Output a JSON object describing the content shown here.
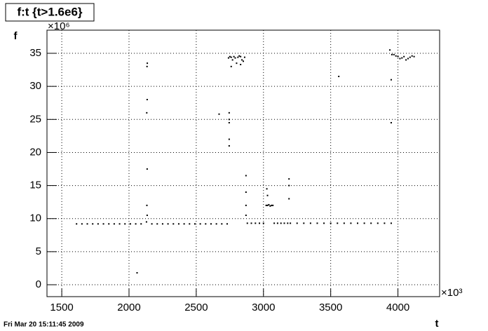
{
  "chart_data": {
    "type": "scatter",
    "title": "f:t {t>1.6e6}",
    "x_label": "t",
    "y_label": "f",
    "x_multiplier": "×10³",
    "y_multiplier": "×10⁶",
    "footer": "Fri Mar 20 15:11:45 2009",
    "color": "#000000",
    "grid": true,
    "xlim": [
      1390,
      4310
    ],
    "ylim": [
      -1.8,
      38.5
    ],
    "xticks": [
      1500,
      2000,
      2500,
      3000,
      3500,
      4000
    ],
    "yticks": [
      0,
      5,
      10,
      15,
      20,
      25,
      30,
      35
    ],
    "x": [
      1610,
      1650,
      1690,
      1730,
      1770,
      1810,
      1850,
      1890,
      1930,
      1970,
      2010,
      2050,
      2090,
      2130,
      2170,
      2210,
      2250,
      2290,
      2330,
      2370,
      2410,
      2450,
      2490,
      2530,
      2570,
      2610,
      2650,
      2690,
      2730,
      2135,
      2133,
      2135,
      2132,
      2135,
      2134,
      2136,
      2745,
      2745,
      2745,
      2745,
      2745,
      2740,
      2750,
      2760,
      2770,
      2780,
      2790,
      2800,
      2810,
      2820,
      2830,
      2840,
      2850,
      2860,
      2760,
      2830,
      2870,
      2870,
      2870,
      2870,
      2880,
      2910,
      2940,
      2970,
      3000,
      3020,
      3030,
      3040,
      3050,
      3060,
      3070,
      3025,
      3030,
      3080,
      3105,
      3130,
      3155,
      3180,
      3190,
      3190,
      3190,
      3200,
      3250,
      3300,
      3350,
      3400,
      3450,
      3500,
      3550,
      3600,
      3650,
      3700,
      3750,
      3800,
      3850,
      3900,
      3950,
      3940,
      3955,
      3970,
      3985,
      4000,
      4015,
      4030,
      4045,
      4060,
      4075,
      4090,
      4105,
      4120,
      2060,
      3560,
      3950,
      3950,
      2670
    ],
    "values": [
      9.2,
      9.2,
      9.2,
      9.2,
      9.2,
      9.2,
      9.2,
      9.2,
      9.2,
      9.2,
      9.2,
      9.2,
      9.2,
      9.5,
      9.2,
      9.2,
      9.2,
      9.2,
      9.2,
      9.2,
      9.2,
      9.2,
      9.2,
      9.2,
      9.2,
      9.2,
      9.2,
      9.2,
      9.2,
      10.5,
      12,
      17.5,
      26,
      28,
      33,
      33.5,
      21,
      22,
      24.5,
      25,
      26,
      34.3,
      34.5,
      34.4,
      34,
      34.5,
      34.3,
      33.5,
      34.4,
      34.6,
      34.5,
      34,
      33.8,
      34.4,
      33,
      33.3,
      16.5,
      14,
      12,
      10.5,
      9.3,
      9.3,
      9.3,
      9.3,
      9.3,
      12,
      12,
      12.1,
      11.9,
      12,
      12,
      14.5,
      13.5,
      9.3,
      9.3,
      9.3,
      9.3,
      9.3,
      13,
      15,
      16,
      9.3,
      9.3,
      9.3,
      9.3,
      9.3,
      9.3,
      9.3,
      9.3,
      9.3,
      9.3,
      9.3,
      9.3,
      9.3,
      9.3,
      9.3,
      9.3,
      35.5,
      34.8,
      34.8,
      34.6,
      34.5,
      34.2,
      34.3,
      34.5,
      34,
      34.2,
      34.4,
      34.6,
      34.5,
      1.8,
      31.5,
      31,
      24.5,
      25.8
    ]
  }
}
